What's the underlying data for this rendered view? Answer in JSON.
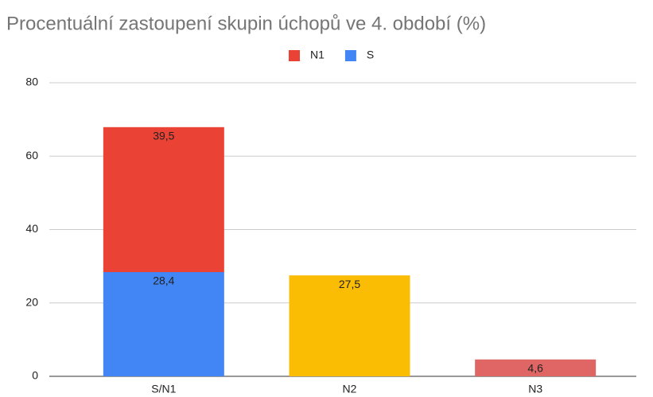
{
  "chart_data": {
    "type": "stacked-bar",
    "title": "Procentuální zastoupení skupin úchopů ve 4. období (%)",
    "categories": [
      "S/N1",
      "N2",
      "N3"
    ],
    "series": [
      {
        "name": "N1",
        "color": "#ea4335",
        "values": [
          39.5,
          null,
          null
        ],
        "value_labels": [
          "39,5",
          null,
          null
        ]
      },
      {
        "name": "S",
        "color": "#4285f4",
        "point_colors": [
          "#4285f4",
          "#fbbc04",
          "#e06666"
        ],
        "values": [
          28.4,
          27.5,
          4.6
        ],
        "value_labels": [
          "28,4",
          "27,5",
          "4,6"
        ]
      }
    ],
    "ylim": [
      0,
      80
    ],
    "yticks": [
      0,
      20,
      40,
      60,
      80
    ],
    "grid": true,
    "legend": "top"
  }
}
